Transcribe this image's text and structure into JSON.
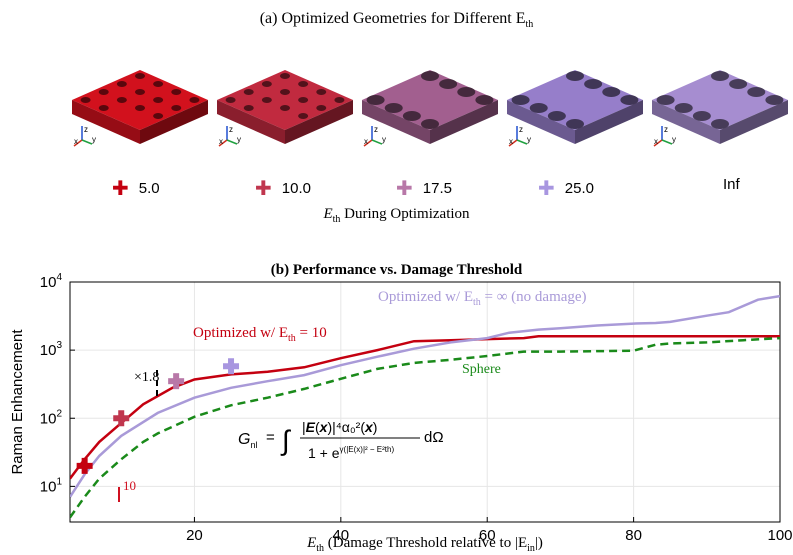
{
  "panel_a": {
    "title": "(a) Optimized Geometries for Different E",
    "title_sub": "th",
    "xlabel": "E",
    "xlabel_sub": "th",
    "xlabel_rest": " During Optimization",
    "markers": [
      {
        "label": "5.0",
        "color": "#c40010"
      },
      {
        "label": "10.0",
        "color": "#c0364e"
      },
      {
        "label": "17.5",
        "color": "#b878a8"
      },
      {
        "label": "25.0",
        "color": "#a896e0"
      },
      {
        "label": "Inf",
        "color": ""
      }
    ],
    "geometry_colors": [
      "#c8101c",
      "#b8283c",
      "#9a5a88",
      "#8f78c0",
      "#9e86c6"
    ],
    "axis_triad_labels": [
      "z",
      "x",
      "y"
    ]
  },
  "panel_b": {
    "title": "(b) Performance vs. Damage Threshold",
    "ylabel": "Raman Enhancement",
    "xlabel": "E",
    "xlabel_sub": "th",
    "xlabel_rest": " (Damage Threshold relative to |E",
    "xlabel_sub2": "in",
    "xlabel_end": "|)",
    "annotations": {
      "optimized_inf": "Optimized w/ E",
      "optimized_inf_rest": " = ∞ (no damage)",
      "optimized_10": "Optimized w/ E",
      "optimized_10_rest": " = 10",
      "sphere": "Sphere",
      "factor": "×1.8",
      "tick10": "10",
      "formula_lhs": "G",
      "formula_lhs_sub": "nl",
      "formula_rhs": "= ∫ |E(x)|⁴α₀²(x) / (1 + e^{γ(|E(x)|² − E²th)}) dΩ"
    },
    "colors": {
      "opt10": "#c40010",
      "optinf": "#a99ad8",
      "sphere": "#1a8a1a"
    }
  },
  "chart_data": {
    "type": "line",
    "title": "(b) Performance vs. Damage Threshold",
    "xlabel": "E_th (Damage Threshold relative to |E_in|)",
    "ylabel": "Raman Enhancement",
    "xlim": [
      3,
      100
    ],
    "ylim": [
      3,
      10000
    ],
    "yscale": "log",
    "xticks": [
      20,
      40,
      60,
      80,
      100
    ],
    "yticks": [
      "10^1",
      "10^2",
      "10^3",
      "10^4"
    ],
    "grid": true,
    "series": [
      {
        "name": "Optimized w/ E_th = 10",
        "color": "#c40010",
        "x": [
          3,
          5,
          7,
          10,
          13,
          17,
          20,
          25,
          30,
          35,
          40,
          45,
          50,
          55,
          60,
          65,
          67,
          70,
          80,
          90,
          100
        ],
        "y": [
          13,
          25,
          45,
          85,
          160,
          280,
          370,
          440,
          480,
          560,
          760,
          1000,
          1350,
          1400,
          1450,
          1500,
          1600,
          1600,
          1600,
          1600,
          1600
        ]
      },
      {
        "name": "Optimized w/ E_th = ∞ (no damage)",
        "color": "#a99ad8",
        "x": [
          3,
          5,
          7,
          10,
          15,
          20,
          25,
          30,
          35,
          40,
          45,
          50,
          55,
          60,
          63,
          67,
          70,
          75,
          80,
          83,
          85,
          90,
          93,
          97,
          100
        ],
        "y": [
          7,
          15,
          28,
          55,
          120,
          200,
          280,
          350,
          430,
          600,
          800,
          1050,
          1300,
          1500,
          1800,
          2000,
          2100,
          2300,
          2450,
          2500,
          2600,
          3200,
          3600,
          5500,
          6200
        ]
      },
      {
        "name": "Sphere",
        "color": "#1a8a1a",
        "x": [
          3,
          5,
          7,
          10,
          13,
          15,
          20,
          25,
          30,
          35,
          40,
          45,
          50,
          55,
          60,
          65,
          70,
          80,
          83,
          85,
          90,
          95,
          100
        ],
        "y": [
          3.5,
          7,
          13,
          25,
          45,
          60,
          105,
          155,
          200,
          270,
          380,
          530,
          650,
          720,
          820,
          950,
          950,
          980,
          1200,
          1250,
          1300,
          1400,
          1500
        ]
      }
    ],
    "markers": [
      {
        "label": "5.0",
        "x": 5,
        "y": 20,
        "color": "#c40010"
      },
      {
        "label": "10.0",
        "x": 10,
        "y": 100,
        "color": "#c0364e"
      },
      {
        "label": "17.5",
        "x": 17.5,
        "y": 350,
        "color": "#b878a8"
      },
      {
        "label": "25.0",
        "x": 25,
        "y": 580,
        "color": "#a896e0"
      }
    ]
  }
}
